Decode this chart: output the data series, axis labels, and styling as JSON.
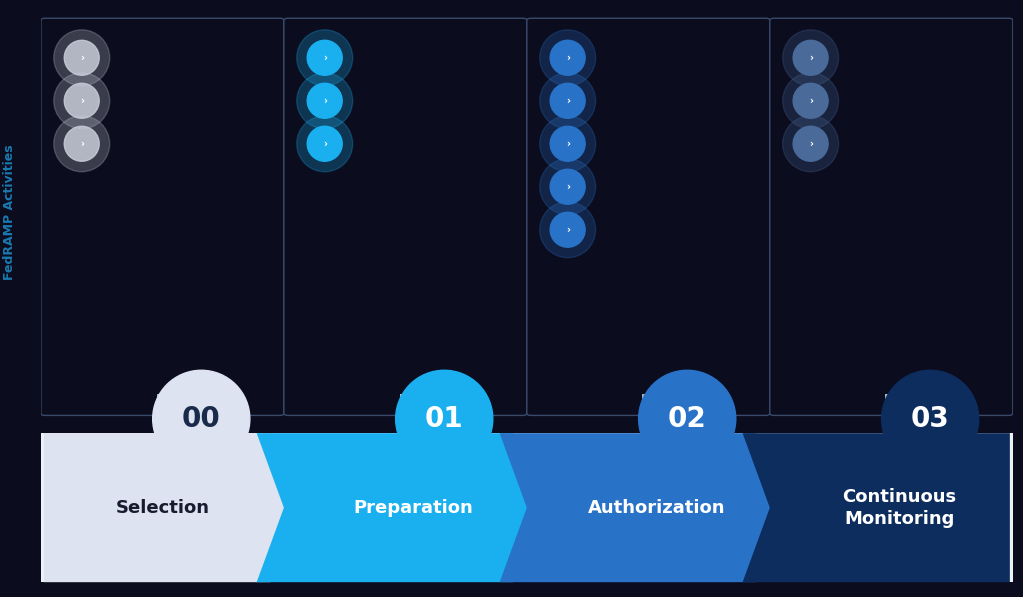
{
  "background_color": "#0b0c1e",
  "phases": [
    {
      "number": "00",
      "label": "Selection",
      "chevron_color": "#dde3f0",
      "text_color": "#1a1a2e",
      "num_dots": 3,
      "dot_color": "#c8ccd8",
      "dot_alpha": 0.85,
      "num_circle_color": "#dde3f0",
      "num_text_color": "#1a2a4a"
    },
    {
      "number": "01",
      "label": "Preparation",
      "chevron_color": "#1ab0f0",
      "text_color": "#ffffff",
      "num_dots": 3,
      "dot_color": "#1ab0f0",
      "dot_alpha": 1.0,
      "num_circle_color": "#1ab0f0",
      "num_text_color": "#ffffff"
    },
    {
      "number": "02",
      "label": "Authorization",
      "chevron_color": "#2872c8",
      "text_color": "#ffffff",
      "num_dots": 5,
      "dot_color": "#2872c8",
      "dot_alpha": 1.0,
      "num_circle_color": "#2872c8",
      "num_text_color": "#ffffff"
    },
    {
      "number": "03",
      "label": "Continuous\nMonitoring",
      "chevron_color": "#0d2d5e",
      "text_color": "#ffffff",
      "num_dots": 3,
      "dot_color": "#4a6a9a",
      "dot_alpha": 1.0,
      "num_circle_color": "#0d2d5e",
      "num_text_color": "#ffffff"
    }
  ],
  "box_bg": "#0b0c1e",
  "box_edge": "#3a4a6a",
  "arrow_section_bg": "#eef1f8",
  "connector_color_00": "#ccccdd",
  "connector_color_rest": "#1ab0f0",
  "y_label": "FedRAMP Activities",
  "y_label_color": "#1a7ab0",
  "number_font_size": 20,
  "label_font_size": 13
}
